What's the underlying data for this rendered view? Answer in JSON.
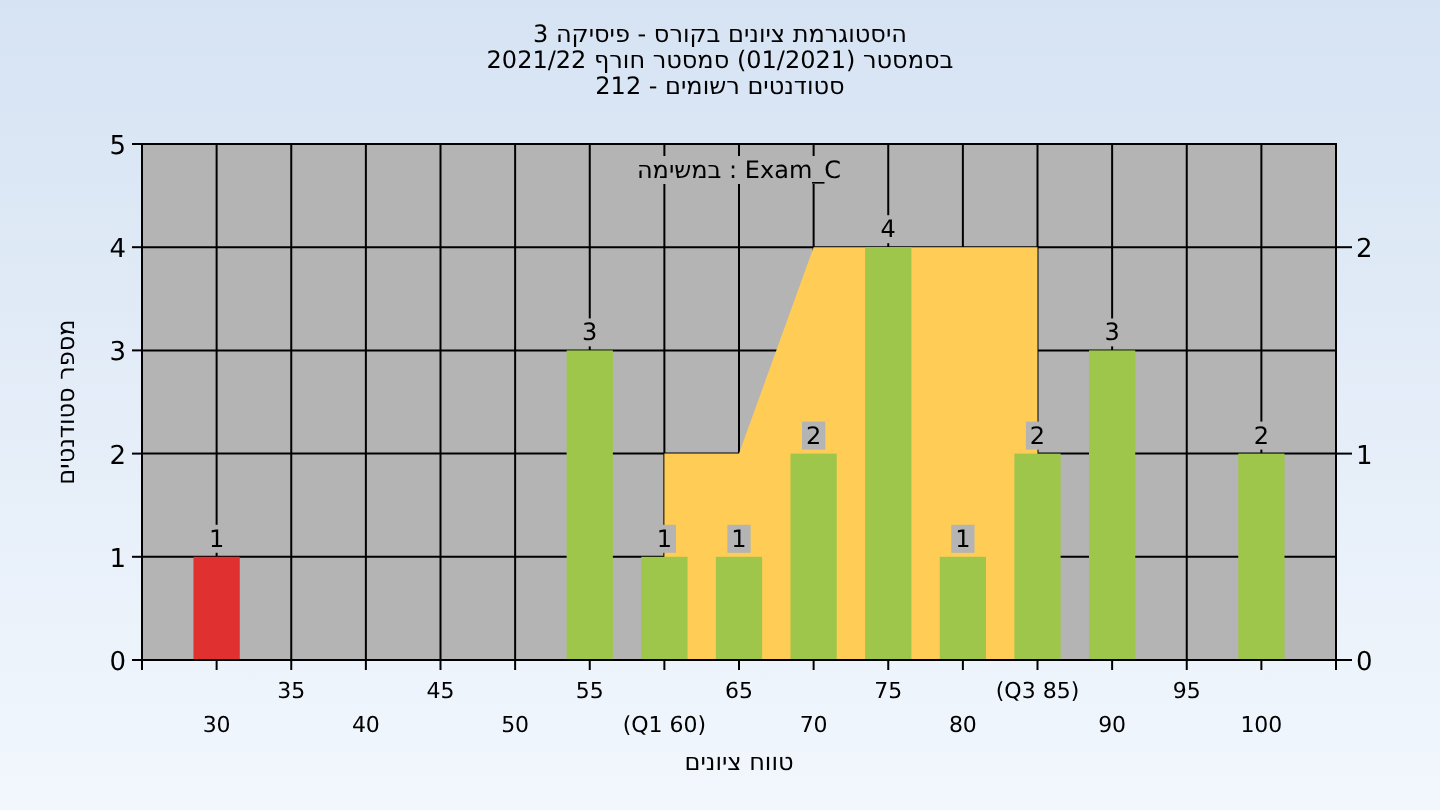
{
  "chart_data": {
    "type": "bar",
    "title": "היסטוגרמת ציונים בקורס - פיסיקה 3",
    "subtitle": "בסמסטר (01/2021) סמסטר חורף 2021/22\nסטודנטים רשומים - 212",
    "xlabel": "טווח ציונים",
    "ylabel": "מספר סטודנטים",
    "annotations": [
      "במשימה : Exam_C"
    ],
    "categories": [
      "30",
      "35",
      "40",
      "45",
      "50",
      "55",
      "(Q1 60)",
      "65",
      "70",
      "75",
      "80",
      "(Q3 85)",
      "90",
      "95",
      "100"
    ],
    "series": [
      {
        "type": "area",
        "axis": "y2",
        "color": "#ffcc55",
        "values": [
          null,
          null,
          null,
          null,
          null,
          null,
          1,
          1,
          2,
          2,
          2,
          2,
          null,
          null,
          null
        ]
      },
      {
        "colors": [
          "#e03030",
          "#9ec64a",
          "#9ec64a",
          "#9ec64a",
          "#9ec64a",
          "#9ec64a",
          "#9ec64a",
          "#9ec64a",
          "#9ec64a",
          "#9ec64a",
          "#9ec64a",
          "#9ec64a",
          "#9ec64a",
          "#9ec64a",
          "#9ec64a"
        ],
        "values": [
          1,
          0,
          0,
          0,
          0,
          3,
          1,
          1,
          2,
          4,
          1,
          2,
          3,
          0,
          2
        ],
        "value_labels": [
          "1",
          null,
          null,
          null,
          null,
          "3",
          "1",
          "1",
          "2",
          "4",
          "1",
          "2",
          "3",
          null,
          "2"
        ]
      }
    ],
    "ylim": [
      0,
      5
    ],
    "yticks": [
      0,
      1,
      2,
      3,
      4,
      5
    ],
    "y2lim": [
      0,
      2.5
    ],
    "y2ticks": [
      0,
      1,
      2
    ],
    "grid": true
  }
}
